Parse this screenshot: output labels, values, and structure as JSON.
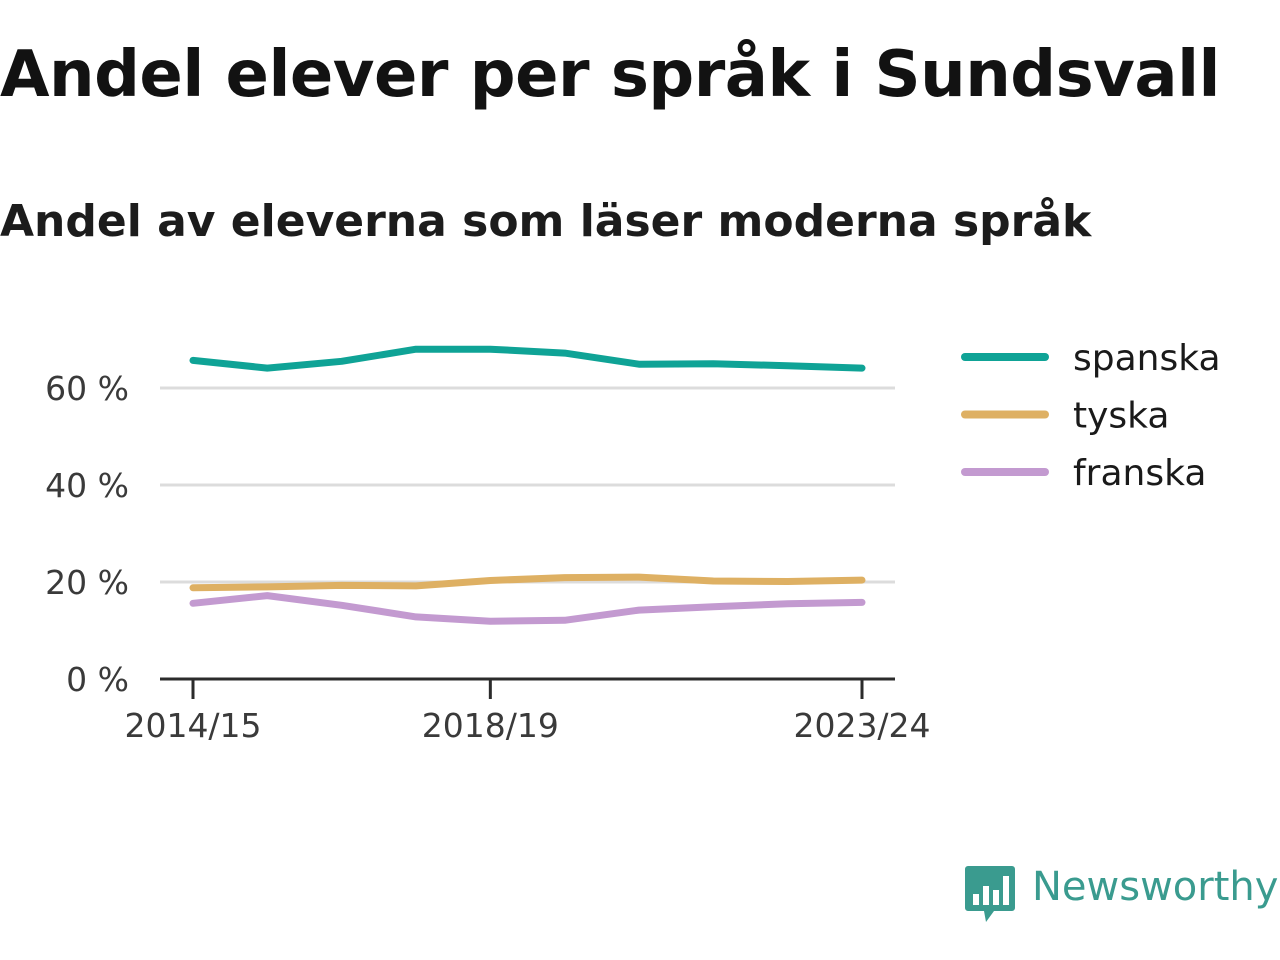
{
  "title": "Andel elever per språk i Sundsvall",
  "subtitle": "Andel av eleverna som läser moderna språk",
  "brand": {
    "name": "Newsworthy",
    "color": "#3a9b8f",
    "icon": "bar-chart-speech-bubble-icon"
  },
  "chart_data": {
    "type": "line",
    "x": [
      "2014/15",
      "2015/16",
      "2016/17",
      "2017/18",
      "2018/19",
      "2019/20",
      "2020/21",
      "2021/22",
      "2022/23",
      "2023/24"
    ],
    "xticks": [
      "2014/15",
      "2018/19",
      "2023/24"
    ],
    "yticks": [
      0,
      20,
      40,
      60
    ],
    "yticklabels": [
      "0 %",
      "20 %",
      "40 %",
      "60 %"
    ],
    "ylim": [
      0,
      70
    ],
    "grid": true,
    "legend_position": "right",
    "series": [
      {
        "name": "spanska",
        "color": "#0fa396",
        "values": [
          65.7,
          64.1,
          65.5,
          68.0,
          68.0,
          67.2,
          64.9,
          65.0,
          64.6,
          64.1
        ]
      },
      {
        "name": "tyska",
        "color": "#deb063",
        "values": [
          18.8,
          19.0,
          19.3,
          19.2,
          20.3,
          20.9,
          21.0,
          20.2,
          20.1,
          20.4
        ]
      },
      {
        "name": "franska",
        "color": "#c39ad0",
        "values": [
          15.6,
          17.2,
          15.2,
          12.8,
          11.9,
          12.1,
          14.2,
          14.9,
          15.5,
          15.8
        ]
      }
    ]
  }
}
